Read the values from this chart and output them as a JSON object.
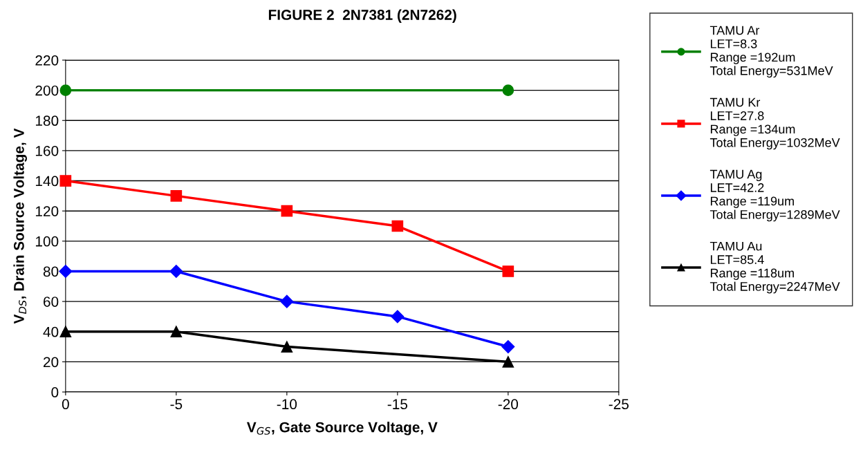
{
  "chart_data": {
    "type": "line",
    "title": "FIGURE 2  2N7381 (2N7262)",
    "xlabel": "V$_{GS}$, Gate Source Voltage, V",
    "ylabel": "V$_{DS}$, Drain Source Voltage, V",
    "xlim": [
      0,
      -25
    ],
    "xticks": [
      0,
      -5,
      -10,
      -15,
      -20,
      -25
    ],
    "ylim": [
      0,
      220
    ],
    "yticks": [
      0,
      20,
      40,
      60,
      80,
      100,
      120,
      140,
      160,
      180,
      200,
      220
    ],
    "grid": "y",
    "legend": "right",
    "line_style": "solid",
    "series": [
      {
        "name": "TAMU Ar\nLET=8.3\nRange =192um\nTotal Energy=531MeV",
        "color": "#008000",
        "marker": "circle",
        "x": [
          0,
          -20
        ],
        "values": [
          200,
          200
        ]
      },
      {
        "name": "TAMU Kr\nLET=27.8\nRange =134um\nTotal Energy=1032MeV",
        "color": "#ff0000",
        "marker": "square",
        "x": [
          0,
          -5,
          -10,
          -15,
          -20
        ],
        "values": [
          140,
          130,
          120,
          110,
          80
        ]
      },
      {
        "name": "TAMU Ag\nLET=42.2\nRange =119um\nTotal Energy=1289MeV",
        "color": "#0000ff",
        "marker": "diamond",
        "x": [
          0,
          -5,
          -10,
          -15,
          -20
        ],
        "values": [
          80,
          80,
          60,
          50,
          30
        ]
      },
      {
        "name": "TAMU Au\nLET=85.4\nRange =118um\nTotal Energy=2247MeV",
        "color": "#000000",
        "marker": "triangle",
        "x": [
          0,
          -5,
          -10,
          -20
        ],
        "values": [
          40,
          40,
          30,
          20
        ]
      }
    ]
  }
}
